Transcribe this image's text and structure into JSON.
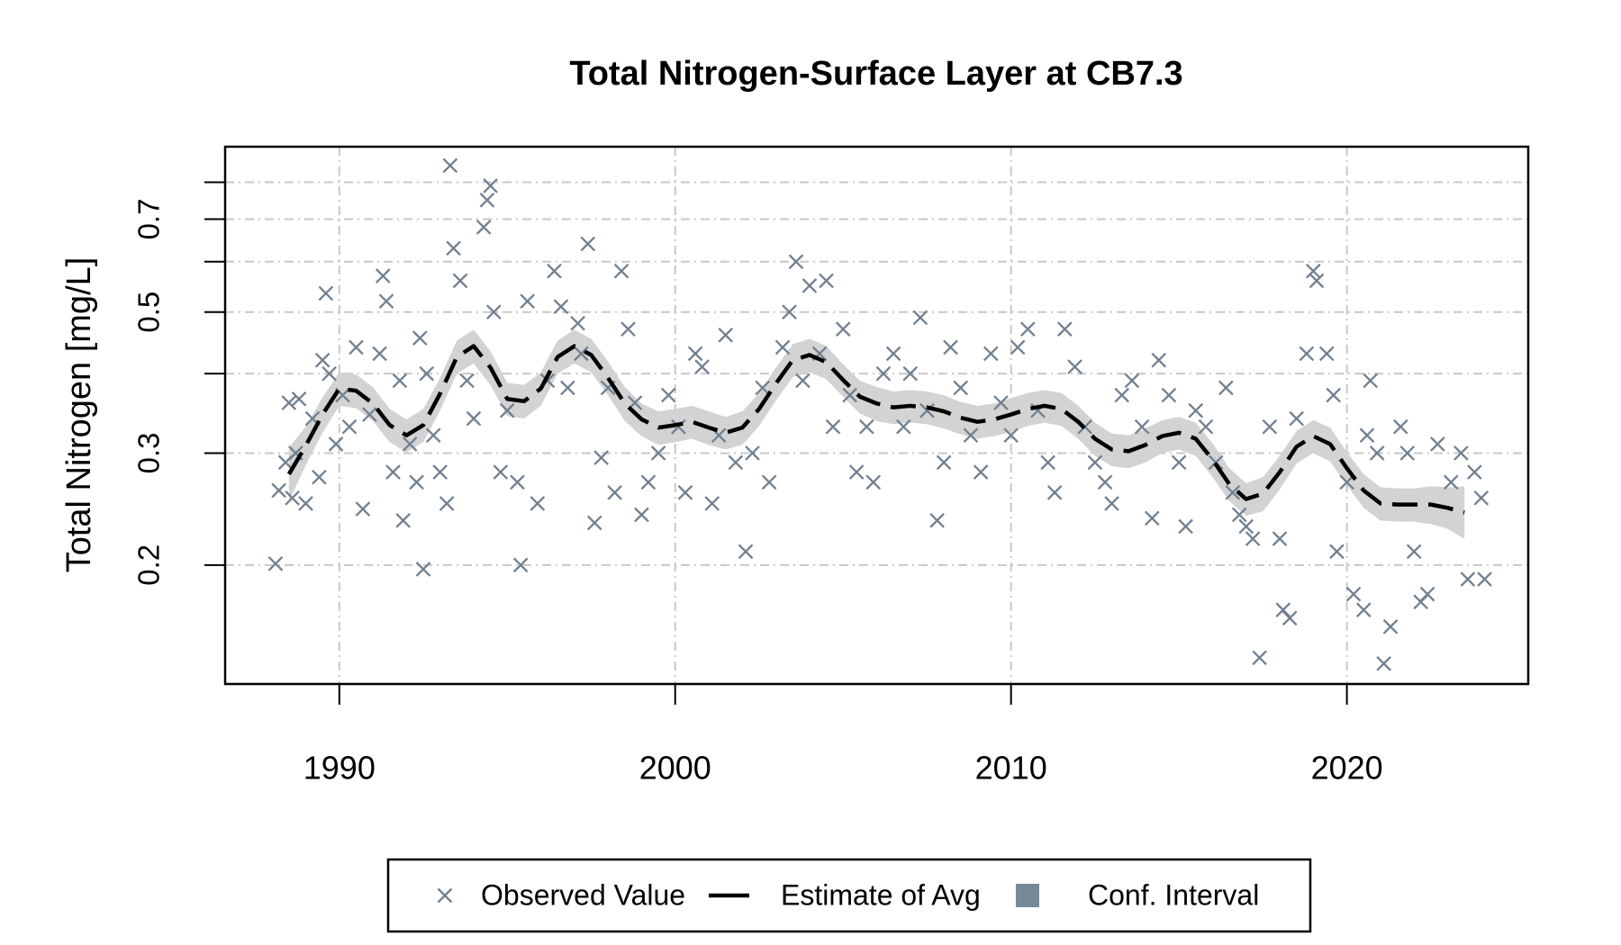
{
  "chart_data": {
    "type": "line",
    "title": "Total Nitrogen-Surface Layer at CB7.3",
    "ylabel": "Total Nitrogen [mg/L]",
    "xlim": [
      1986.6,
      2025.4
    ],
    "xticks": [
      1990,
      2000,
      2010,
      2020
    ],
    "ylim": [
      0.13,
      0.91
    ],
    "yscale": "log",
    "yticks": [
      0.2,
      0.3,
      0.5,
      0.7
    ],
    "yminor_ticks": [
      0.4,
      0.6,
      0.8
    ],
    "grid": true,
    "legend": "bottom",
    "series": [
      {
        "name": "Observed Value",
        "type": "scatter",
        "color": "#708090",
        "x": [
          1988.1,
          1988.2,
          1988.4,
          1988.5,
          1988.6,
          1988.7,
          1988.8,
          1989.0,
          1989.2,
          1989.4,
          1989.5,
          1989.6,
          1989.7,
          1989.9,
          1990.1,
          1990.3,
          1990.5,
          1990.7,
          1990.9,
          1991.2,
          1991.3,
          1991.4,
          1991.6,
          1991.8,
          1991.9,
          1992.1,
          1992.3,
          1992.4,
          1992.5,
          1992.6,
          1992.8,
          1993.0,
          1993.2,
          1993.4,
          1993.3,
          1993.6,
          1993.8,
          1994.0,
          1994.3,
          1994.4,
          1994.5,
          1994.6,
          1994.8,
          1995.0,
          1995.3,
          1995.4,
          1995.6,
          1995.9,
          1996.2,
          1996.4,
          1996.6,
          1996.8,
          1997.1,
          1997.2,
          1997.4,
          1997.6,
          1997.8,
          1998.0,
          1998.2,
          1998.4,
          1998.6,
          1998.8,
          1999.0,
          1999.2,
          1999.5,
          1999.8,
          2000.1,
          2000.3,
          2000.6,
          2000.8,
          2001.1,
          2001.3,
          2001.5,
          2001.8,
          2002.1,
          2002.3,
          2002.6,
          2002.8,
          2003.2,
          2003.4,
          2003.6,
          2003.8,
          2004.0,
          2004.3,
          2004.5,
          2004.7,
          2005.0,
          2005.2,
          2005.4,
          2005.7,
          2005.9,
          2006.2,
          2006.5,
          2006.8,
          2007.0,
          2007.3,
          2007.5,
          2007.8,
          2008.0,
          2008.2,
          2008.5,
          2008.8,
          2009.1,
          2009.4,
          2009.7,
          2010.0,
          2010.2,
          2010.5,
          2010.8,
          2011.1,
          2011.3,
          2011.6,
          2011.9,
          2012.2,
          2012.5,
          2012.8,
          2013.0,
          2013.3,
          2013.6,
          2013.9,
          2014.2,
          2014.4,
          2014.7,
          2015.0,
          2015.2,
          2015.5,
          2015.8,
          2016.1,
          2016.4,
          2016.6,
          2016.8,
          2017.0,
          2017.2,
          2017.4,
          2017.7,
          2018.0,
          2018.3,
          2018.1,
          2018.5,
          2018.8,
          2019.0,
          2019.1,
          2019.4,
          2019.6,
          2019.7,
          2020.0,
          2020.2,
          2020.5,
          2020.6,
          2020.7,
          2020.9,
          2021.1,
          2021.3,
          2021.6,
          2021.8,
          2022.0,
          2022.2,
          2022.4,
          2022.7,
          2023.1,
          2023.4,
          2023.6,
          2023.8,
          2024.0,
          2024.1
        ],
        "values": [
          0.201,
          0.262,
          0.29,
          0.36,
          0.255,
          0.3,
          0.365,
          0.25,
          0.34,
          0.275,
          0.42,
          0.535,
          0.4,
          0.31,
          0.37,
          0.33,
          0.44,
          0.245,
          0.345,
          0.43,
          0.57,
          0.52,
          0.28,
          0.39,
          0.235,
          0.31,
          0.27,
          0.455,
          0.197,
          0.4,
          0.32,
          0.28,
          0.25,
          0.63,
          0.85,
          0.56,
          0.39,
          0.34,
          0.68,
          0.75,
          0.79,
          0.5,
          0.28,
          0.35,
          0.27,
          0.2,
          0.52,
          0.25,
          0.39,
          0.58,
          0.51,
          0.38,
          0.48,
          0.43,
          0.64,
          0.233,
          0.295,
          0.38,
          0.26,
          0.58,
          0.47,
          0.36,
          0.24,
          0.27,
          0.3,
          0.37,
          0.33,
          0.26,
          0.43,
          0.41,
          0.25,
          0.32,
          0.46,
          0.29,
          0.21,
          0.3,
          0.38,
          0.27,
          0.44,
          0.5,
          0.6,
          0.39,
          0.55,
          0.43,
          0.56,
          0.33,
          0.47,
          0.37,
          0.28,
          0.33,
          0.27,
          0.4,
          0.43,
          0.33,
          0.4,
          0.49,
          0.35,
          0.235,
          0.29,
          0.44,
          0.38,
          0.32,
          0.28,
          0.43,
          0.36,
          0.32,
          0.44,
          0.47,
          0.35,
          0.29,
          0.26,
          0.47,
          0.41,
          0.33,
          0.29,
          0.27,
          0.25,
          0.37,
          0.39,
          0.33,
          0.237,
          0.42,
          0.37,
          0.29,
          0.23,
          0.35,
          0.33,
          0.29,
          0.38,
          0.26,
          0.24,
          0.23,
          0.22,
          0.143,
          0.33,
          0.22,
          0.165,
          0.17,
          0.34,
          0.43,
          0.58,
          0.56,
          0.43,
          0.37,
          0.21,
          0.27,
          0.18,
          0.17,
          0.32,
          0.39,
          0.3,
          0.14,
          0.16,
          0.33,
          0.3,
          0.21,
          0.175,
          0.18,
          0.31,
          0.27,
          0.3,
          0.19,
          0.28,
          0.255,
          0.19
        ]
      },
      {
        "name": "Estimate of Avg",
        "type": "line",
        "color": "#000000",
        "x": [
          1988.5,
          1989,
          1989.5,
          1990,
          1990.5,
          1991,
          1991.5,
          1992,
          1992.5,
          1993,
          1993.5,
          1994,
          1994.5,
          1995,
          1995.5,
          1996,
          1996.5,
          1997,
          1997.5,
          1998,
          1998.5,
          1999,
          1999.5,
          2000,
          2000.5,
          2001,
          2001.5,
          2002,
          2002.5,
          2003,
          2003.5,
          2004,
          2004.5,
          2005,
          2005.5,
          2006,
          2006.5,
          2007,
          2007.5,
          2008,
          2008.5,
          2009,
          2009.5,
          2010,
          2010.5,
          2011,
          2011.5,
          2012,
          2012.5,
          2013,
          2013.5,
          2014,
          2014.5,
          2015,
          2015.5,
          2016,
          2016.5,
          2017,
          2017.5,
          2018,
          2018.5,
          2019,
          2019.5,
          2020,
          2020.5,
          2021,
          2021.5,
          2022,
          2022.5,
          2023,
          2023.5
        ],
        "values": [
          0.278,
          0.308,
          0.345,
          0.379,
          0.376,
          0.359,
          0.332,
          0.32,
          0.332,
          0.372,
          0.425,
          0.442,
          0.409,
          0.365,
          0.362,
          0.379,
          0.425,
          0.442,
          0.428,
          0.394,
          0.359,
          0.339,
          0.329,
          0.332,
          0.336,
          0.329,
          0.323,
          0.329,
          0.352,
          0.386,
          0.42,
          0.428,
          0.417,
          0.391,
          0.368,
          0.359,
          0.354,
          0.356,
          0.354,
          0.349,
          0.341,
          0.336,
          0.339,
          0.345,
          0.352,
          0.356,
          0.352,
          0.336,
          0.316,
          0.304,
          0.302,
          0.309,
          0.319,
          0.323,
          0.316,
          0.293,
          0.268,
          0.254,
          0.259,
          0.28,
          0.307,
          0.319,
          0.31,
          0.284,
          0.262,
          0.25,
          0.249,
          0.249,
          0.249,
          0.246,
          0.242
        ]
      },
      {
        "name": "Conf. Interval",
        "type": "band",
        "color": "#d3d3d3",
        "legend_color": "#778899",
        "x": [
          1988.5,
          1989,
          1989.5,
          1990,
          1990.5,
          1991,
          1991.5,
          1992,
          1992.5,
          1993,
          1993.5,
          1994,
          1994.5,
          1995,
          1995.5,
          1996,
          1996.5,
          1997,
          1997.5,
          1998,
          1998.5,
          1999,
          1999.5,
          2000,
          2000.5,
          2001,
          2001.5,
          2002,
          2002.5,
          2003,
          2003.5,
          2004,
          2004.5,
          2005,
          2005.5,
          2006,
          2006.5,
          2007,
          2007.5,
          2008,
          2008.5,
          2009,
          2009.5,
          2010,
          2010.5,
          2011,
          2011.5,
          2012,
          2012.5,
          2013,
          2013.5,
          2014,
          2014.5,
          2015,
          2015.5,
          2016,
          2016.5,
          2017,
          2017.5,
          2018,
          2018.5,
          2019,
          2019.5,
          2020,
          2020.5,
          2021,
          2021.5,
          2022,
          2022.5,
          2023,
          2023.5
        ],
        "lower": [
          0.252,
          0.287,
          0.323,
          0.356,
          0.353,
          0.337,
          0.312,
          0.301,
          0.312,
          0.35,
          0.4,
          0.415,
          0.384,
          0.343,
          0.34,
          0.356,
          0.4,
          0.415,
          0.402,
          0.37,
          0.337,
          0.319,
          0.309,
          0.312,
          0.316,
          0.309,
          0.304,
          0.309,
          0.331,
          0.363,
          0.395,
          0.402,
          0.392,
          0.368,
          0.346,
          0.337,
          0.333,
          0.335,
          0.333,
          0.328,
          0.321,
          0.316,
          0.319,
          0.324,
          0.331,
          0.335,
          0.331,
          0.316,
          0.297,
          0.286,
          0.284,
          0.29,
          0.3,
          0.304,
          0.297,
          0.275,
          0.252,
          0.239,
          0.243,
          0.263,
          0.289,
          0.3,
          0.291,
          0.267,
          0.246,
          0.235,
          0.234,
          0.234,
          0.232,
          0.228,
          0.22
        ],
        "upper": [
          0.306,
          0.33,
          0.367,
          0.402,
          0.399,
          0.381,
          0.352,
          0.339,
          0.352,
          0.394,
          0.451,
          0.469,
          0.434,
          0.387,
          0.384,
          0.402,
          0.451,
          0.469,
          0.454,
          0.418,
          0.381,
          0.359,
          0.349,
          0.352,
          0.356,
          0.349,
          0.342,
          0.349,
          0.373,
          0.409,
          0.445,
          0.454,
          0.442,
          0.414,
          0.39,
          0.381,
          0.375,
          0.377,
          0.375,
          0.37,
          0.361,
          0.356,
          0.359,
          0.366,
          0.373,
          0.377,
          0.373,
          0.356,
          0.335,
          0.322,
          0.32,
          0.328,
          0.338,
          0.342,
          0.335,
          0.311,
          0.284,
          0.269,
          0.275,
          0.297,
          0.325,
          0.338,
          0.329,
          0.301,
          0.278,
          0.265,
          0.264,
          0.264,
          0.266,
          0.265,
          0.266
        ]
      }
    ]
  }
}
